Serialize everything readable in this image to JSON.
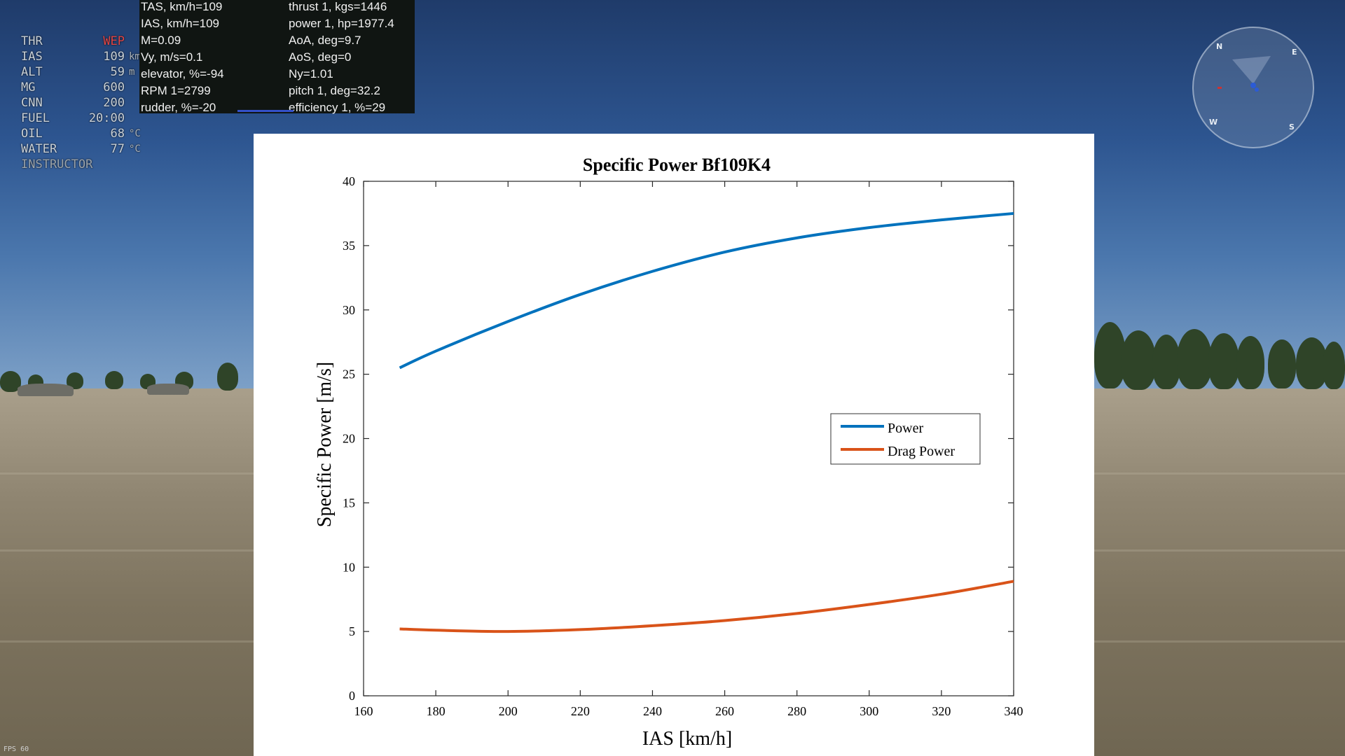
{
  "hud": {
    "rows": [
      {
        "key": "THR",
        "value": "WEP",
        "unit": ""
      },
      {
        "key": "IAS",
        "value": "109",
        "unit": "km/h"
      },
      {
        "key": "ALT",
        "value": "59",
        "unit": "m"
      },
      {
        "key": "MG",
        "value": "600",
        "unit": ""
      },
      {
        "key": "CNN",
        "value": "200",
        "unit": ""
      },
      {
        "key": "FUEL",
        "value": "20:00",
        "unit": ""
      },
      {
        "key": "OIL",
        "value": "68",
        "unit": "°C"
      },
      {
        "key": "WATER",
        "value": "77",
        "unit": "°C"
      }
    ],
    "instructor": "INSTRUCTOR"
  },
  "stats": {
    "left": [
      "TAS, km/h=109",
      "IAS, km/h=109",
      "M=0.09",
      "Vy, m/s=0.1",
      "elevator, %=-94",
      "RPM 1=2799",
      "rudder, %=-20"
    ],
    "right": [
      "thrust 1, kgs=1446",
      "power 1, hp=1977.4",
      "AoA, deg=9.7",
      "AoS, deg=0",
      "Ny=1.01",
      "pitch 1, deg=32.2",
      "efficiency 1, %=29"
    ]
  },
  "compass": {
    "n": "N",
    "e": "E",
    "s": "S",
    "w": "W"
  },
  "fps": "FPS 60",
  "colors": {
    "power": "#0072bd",
    "drag": "#d95319"
  },
  "chart_data": {
    "type": "line",
    "title": "Specific Power Bf109K4",
    "xlabel": "IAS [km/h]",
    "ylabel": "Specific Power [m/s]",
    "xlim": [
      160,
      340
    ],
    "ylim": [
      0,
      40
    ],
    "xticks": [
      160,
      180,
      200,
      220,
      240,
      260,
      280,
      300,
      320,
      340
    ],
    "yticks": [
      0,
      5,
      10,
      15,
      20,
      25,
      30,
      35,
      40
    ],
    "legend_position": "center-right",
    "series": [
      {
        "name": "Power",
        "x": [
          170,
          180,
          200,
          220,
          240,
          260,
          280,
          300,
          320,
          340
        ],
        "y": [
          25.5,
          26.8,
          29.1,
          31.2,
          33.0,
          34.5,
          35.6,
          36.4,
          37.0,
          37.5
        ]
      },
      {
        "name": "Drag Power",
        "x": [
          170,
          180,
          200,
          220,
          240,
          260,
          280,
          300,
          320,
          340
        ],
        "y": [
          5.2,
          5.1,
          5.0,
          5.15,
          5.45,
          5.85,
          6.4,
          7.1,
          7.9,
          8.9
        ]
      }
    ]
  }
}
